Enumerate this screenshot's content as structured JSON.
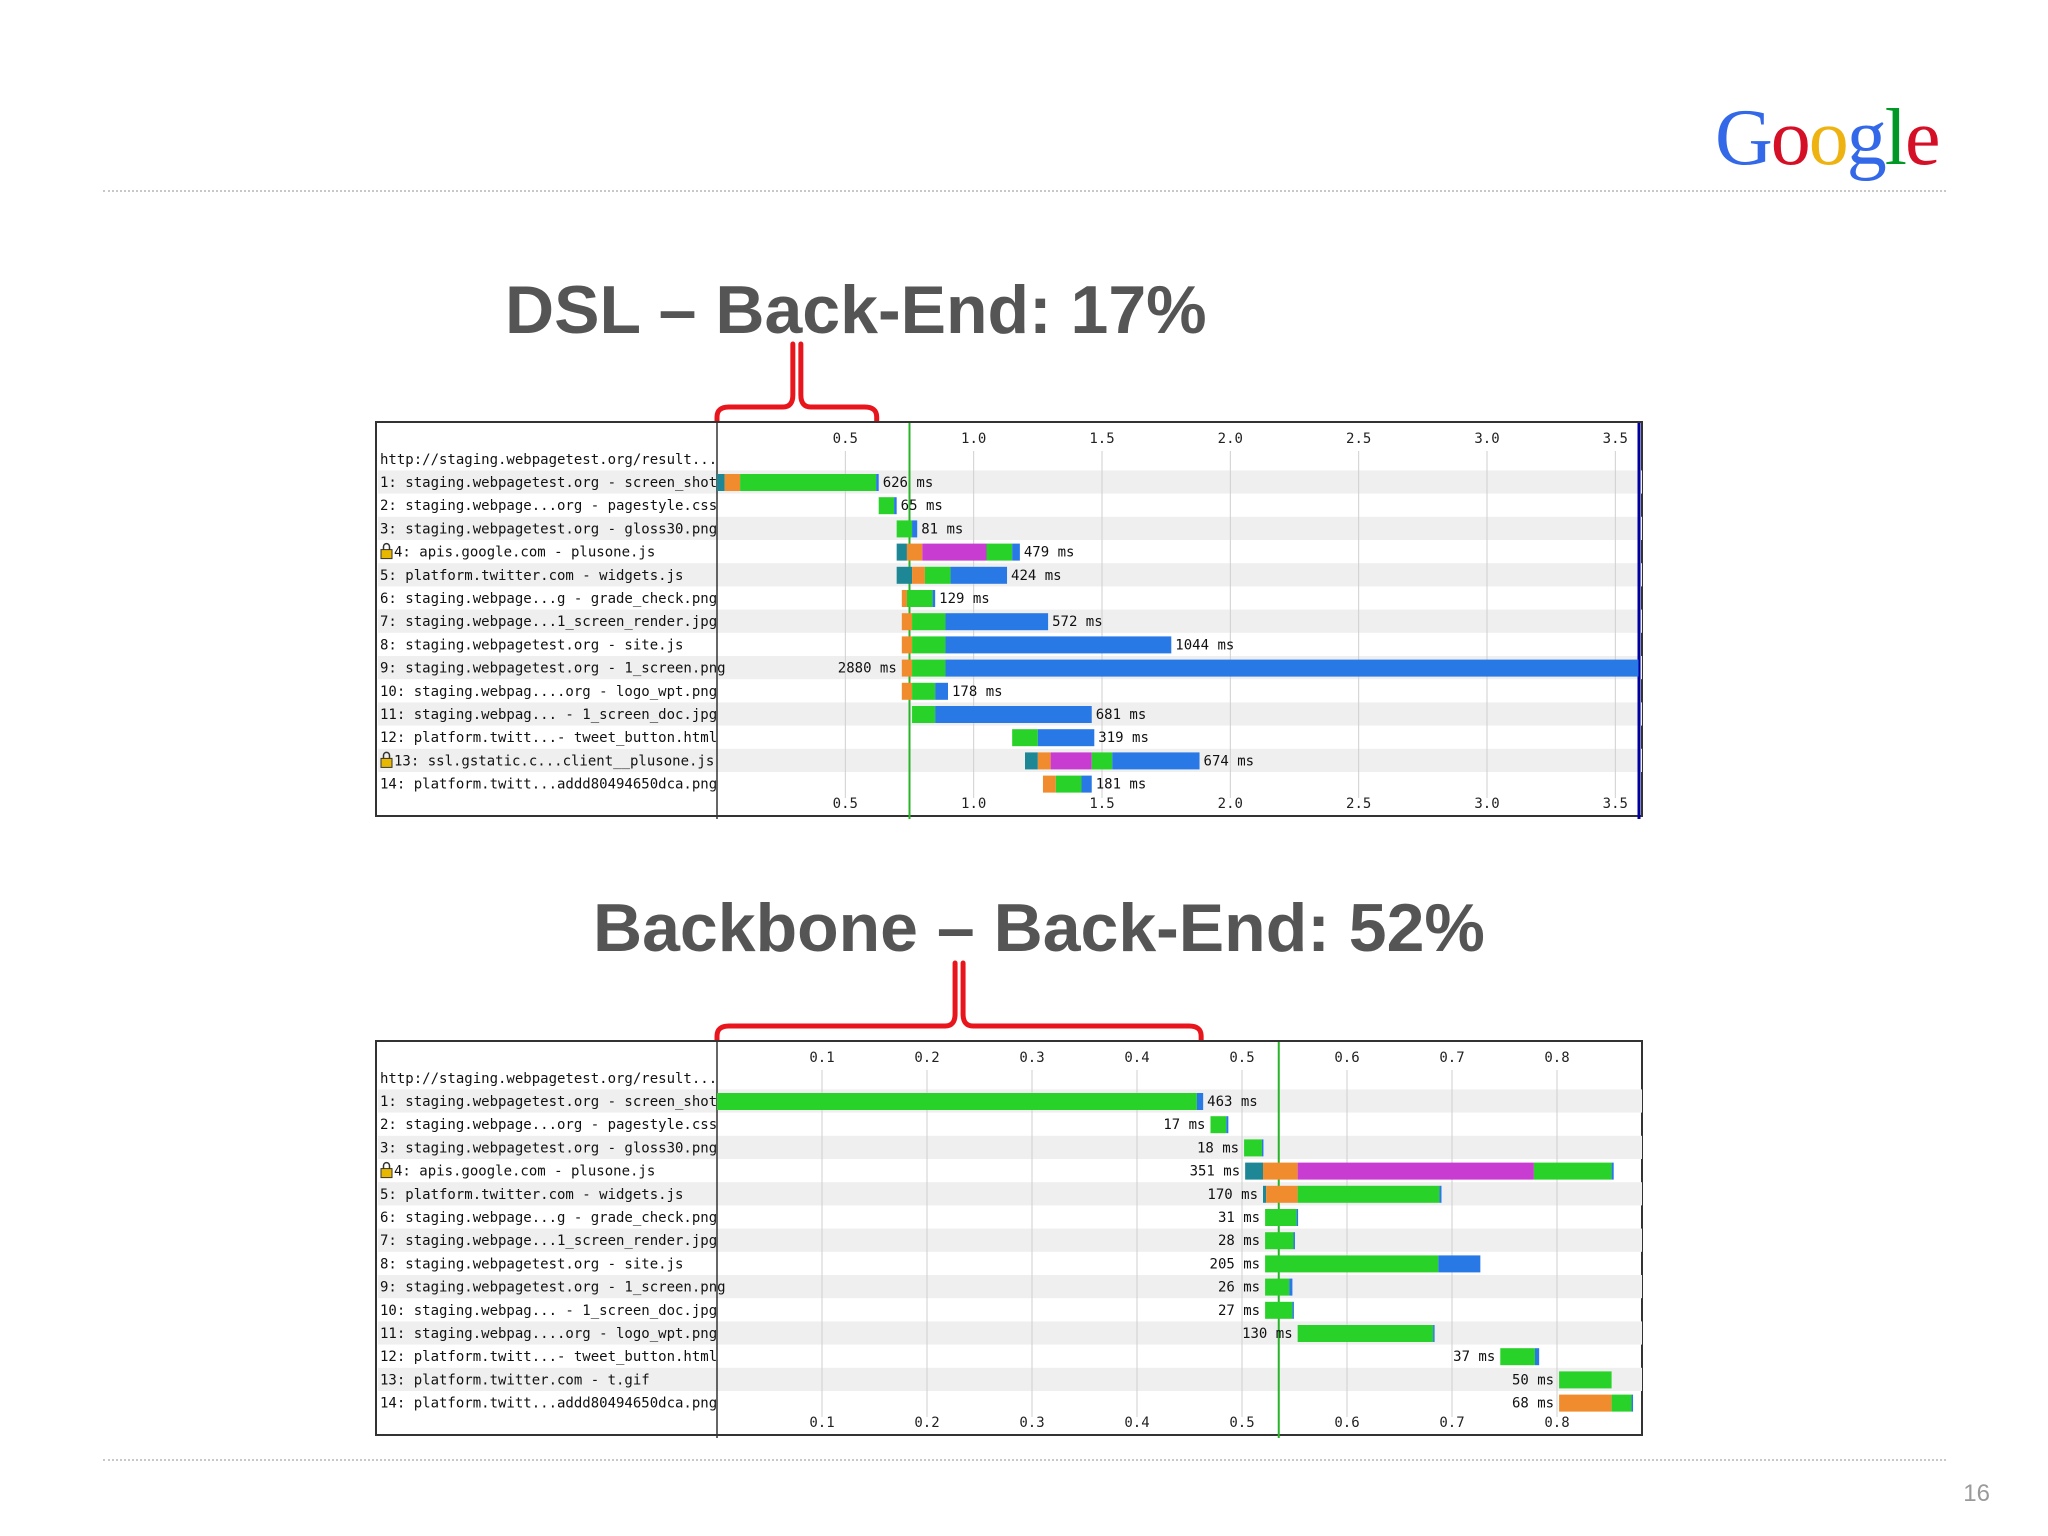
{
  "logo": {
    "letters": [
      "G",
      "o",
      "o",
      "g",
      "l",
      "e"
    ],
    "colors": [
      "#3369e8",
      "#d50f25",
      "#eeb211",
      "#3369e8",
      "#009925",
      "#d50f25"
    ]
  },
  "page_number": "16",
  "colors": {
    "dns": "#1e8796",
    "connect": "#f08c2d",
    "ssl": "#c83cd2",
    "ttfb": "#28d228",
    "download": "#2878e6",
    "start_render": "#28b428",
    "doc_complete": "#0000a0",
    "brace": "#e8161c"
  },
  "chart_data": [
    {
      "type": "waterfall",
      "title": "DSL – Back-End: 17%",
      "xlim": [
        0,
        3.6
      ],
      "ticks": [
        "0.5",
        "1.0",
        "1.5",
        "2.0",
        "2.5",
        "3.0",
        "3.5"
      ],
      "tick_values": [
        0.5,
        1.0,
        1.5,
        2.0,
        2.5,
        3.0,
        3.5
      ],
      "start_render": 0.75,
      "doc_complete": 3.6,
      "brace_range": [
        0,
        0.63
      ],
      "header_row": "http://staging.webpagetest.org/result...",
      "rows": [
        {
          "label": "1: staging.webpagetest.org - screen_shot/",
          "secure": false,
          "duration": "626 ms",
          "side": "right",
          "segments": [
            {
              "phase": "dns",
              "start": 0.0,
              "end": 0.03
            },
            {
              "phase": "connect",
              "start": 0.03,
              "end": 0.09
            },
            {
              "phase": "ttfb",
              "start": 0.09,
              "end": 0.62
            },
            {
              "phase": "download",
              "start": 0.62,
              "end": 0.63
            }
          ]
        },
        {
          "label": "2: staging.webpage...org - pagestyle.css",
          "secure": false,
          "duration": "65 ms",
          "side": "right",
          "segments": [
            {
              "phase": "ttfb",
              "start": 0.63,
              "end": 0.69
            },
            {
              "phase": "download",
              "start": 0.69,
              "end": 0.7
            }
          ]
        },
        {
          "label": "3: staging.webpagetest.org - gloss30.png",
          "secure": false,
          "duration": "81 ms",
          "side": "right",
          "segments": [
            {
              "phase": "ttfb",
              "start": 0.7,
              "end": 0.76
            },
            {
              "phase": "download",
              "start": 0.76,
              "end": 0.78
            }
          ]
        },
        {
          "label": "4: apis.google.com - plusone.js",
          "secure": true,
          "duration": "479 ms",
          "side": "right",
          "segments": [
            {
              "phase": "dns",
              "start": 0.7,
              "end": 0.74
            },
            {
              "phase": "connect",
              "start": 0.74,
              "end": 0.8
            },
            {
              "phase": "ssl",
              "start": 0.8,
              "end": 1.05
            },
            {
              "phase": "ttfb",
              "start": 1.05,
              "end": 1.15
            },
            {
              "phase": "download",
              "start": 1.15,
              "end": 1.18
            }
          ]
        },
        {
          "label": "5: platform.twitter.com - widgets.js",
          "secure": false,
          "duration": "424 ms",
          "side": "right",
          "segments": [
            {
              "phase": "dns",
              "start": 0.7,
              "end": 0.76
            },
            {
              "phase": "connect",
              "start": 0.76,
              "end": 0.81
            },
            {
              "phase": "ttfb",
              "start": 0.81,
              "end": 0.91
            },
            {
              "phase": "download",
              "start": 0.91,
              "end": 1.13
            }
          ]
        },
        {
          "label": "6: staging.webpage...g - grade_check.png",
          "secure": false,
          "duration": "129 ms",
          "side": "right",
          "segments": [
            {
              "phase": "connect",
              "start": 0.72,
              "end": 0.74
            },
            {
              "phase": "ttfb",
              "start": 0.74,
              "end": 0.84
            },
            {
              "phase": "download",
              "start": 0.84,
              "end": 0.85
            }
          ]
        },
        {
          "label": "7: staging.webpage...1_screen_render.jpg",
          "secure": false,
          "duration": "572 ms",
          "side": "right",
          "segments": [
            {
              "phase": "connect",
              "start": 0.72,
              "end": 0.76
            },
            {
              "phase": "ttfb",
              "start": 0.76,
              "end": 0.89
            },
            {
              "phase": "download",
              "start": 0.89,
              "end": 1.29
            }
          ]
        },
        {
          "label": "8: staging.webpagetest.org - site.js",
          "secure": false,
          "duration": "1044 ms",
          "side": "right",
          "segments": [
            {
              "phase": "connect",
              "start": 0.72,
              "end": 0.76
            },
            {
              "phase": "ttfb",
              "start": 0.76,
              "end": 0.89
            },
            {
              "phase": "download",
              "start": 0.89,
              "end": 1.77
            }
          ]
        },
        {
          "label": "9: staging.webpagetest.org - 1_screen.png",
          "secure": false,
          "duration": "2880 ms",
          "side": "left",
          "segments": [
            {
              "phase": "connect",
              "start": 0.72,
              "end": 0.76
            },
            {
              "phase": "ttfb",
              "start": 0.76,
              "end": 0.89
            },
            {
              "phase": "download",
              "start": 0.89,
              "end": 3.59
            }
          ]
        },
        {
          "label": "10: staging.webpag....org - logo_wpt.png",
          "secure": false,
          "duration": "178 ms",
          "side": "right",
          "segments": [
            {
              "phase": "connect",
              "start": 0.72,
              "end": 0.76
            },
            {
              "phase": "ttfb",
              "start": 0.76,
              "end": 0.85
            },
            {
              "phase": "download",
              "start": 0.85,
              "end": 0.9
            }
          ]
        },
        {
          "label": "11: staging.webpag... - 1_screen_doc.jpg",
          "secure": false,
          "duration": "681 ms",
          "side": "right",
          "segments": [
            {
              "phase": "ttfb",
              "start": 0.76,
              "end": 0.85
            },
            {
              "phase": "download",
              "start": 0.85,
              "end": 1.46
            }
          ]
        },
        {
          "label": "12: platform.twitt...- tweet_button.html",
          "secure": false,
          "duration": "319 ms",
          "side": "right",
          "segments": [
            {
              "phase": "ttfb",
              "start": 1.15,
              "end": 1.25
            },
            {
              "phase": "download",
              "start": 1.25,
              "end": 1.47
            }
          ]
        },
        {
          "label": "13: ssl.gstatic.c...client__plusone.js",
          "secure": true,
          "duration": "674 ms",
          "side": "right",
          "segments": [
            {
              "phase": "dns",
              "start": 1.2,
              "end": 1.25
            },
            {
              "phase": "connect",
              "start": 1.25,
              "end": 1.3
            },
            {
              "phase": "ssl",
              "start": 1.3,
              "end": 1.46
            },
            {
              "phase": "ttfb",
              "start": 1.46,
              "end": 1.54
            },
            {
              "phase": "download",
              "start": 1.54,
              "end": 1.88
            }
          ]
        },
        {
          "label": "14: platform.twitt...addd80494650dca.png",
          "secure": false,
          "duration": "181 ms",
          "side": "right",
          "segments": [
            {
              "phase": "connect",
              "start": 1.27,
              "end": 1.32
            },
            {
              "phase": "ttfb",
              "start": 1.32,
              "end": 1.42
            },
            {
              "phase": "download",
              "start": 1.42,
              "end": 1.46
            }
          ]
        }
      ]
    },
    {
      "type": "waterfall",
      "title": "Backbone – Back-End: 52%",
      "xlim": [
        0,
        0.88
      ],
      "ticks": [
        "0.1",
        "0.2",
        "0.3",
        "0.4",
        "0.5",
        "0.6",
        "0.7",
        "0.8"
      ],
      "tick_values": [
        0.1,
        0.2,
        0.3,
        0.4,
        0.5,
        0.6,
        0.7,
        0.8
      ],
      "start_render": 0.535,
      "doc_complete": null,
      "brace_range": [
        0,
        0.463
      ],
      "header_row": "http://staging.webpagetest.org/result...",
      "rows": [
        {
          "label": "1: staging.webpagetest.org - screen_shot/",
          "secure": false,
          "duration": "463 ms",
          "side": "right",
          "segments": [
            {
              "phase": "ttfb",
              "start": 0.0,
              "end": 0.457
            },
            {
              "phase": "download",
              "start": 0.457,
              "end": 0.463
            }
          ]
        },
        {
          "label": "2: staging.webpage...org - pagestyle.css",
          "secure": false,
          "duration": "17 ms",
          "side": "left",
          "segments": [
            {
              "phase": "ttfb",
              "start": 0.47,
              "end": 0.485
            },
            {
              "phase": "download",
              "start": 0.485,
              "end": 0.487
            }
          ]
        },
        {
          "label": "3: staging.webpagetest.org - gloss30.png",
          "secure": false,
          "duration": "18 ms",
          "side": "left",
          "segments": [
            {
              "phase": "ttfb",
              "start": 0.502,
              "end": 0.519
            },
            {
              "phase": "download",
              "start": 0.519,
              "end": 0.52
            }
          ]
        },
        {
          "label": "4: apis.google.com - plusone.js",
          "secure": true,
          "duration": "351 ms",
          "side": "left",
          "segments": [
            {
              "phase": "dns",
              "start": 0.503,
              "end": 0.52
            },
            {
              "phase": "connect",
              "start": 0.52,
              "end": 0.553
            },
            {
              "phase": "ssl",
              "start": 0.553,
              "end": 0.778
            },
            {
              "phase": "ttfb",
              "start": 0.778,
              "end": 0.852
            },
            {
              "phase": "download",
              "start": 0.852,
              "end": 0.854
            }
          ]
        },
        {
          "label": "5: platform.twitter.com - widgets.js",
          "secure": false,
          "duration": "170 ms",
          "side": "left",
          "segments": [
            {
              "phase": "dns",
              "start": 0.52,
              "end": 0.523
            },
            {
              "phase": "connect",
              "start": 0.523,
              "end": 0.553
            },
            {
              "phase": "ttfb",
              "start": 0.553,
              "end": 0.688
            },
            {
              "phase": "download",
              "start": 0.688,
              "end": 0.69
            }
          ]
        },
        {
          "label": "6: staging.webpage...g - grade_check.png",
          "secure": false,
          "duration": "31 ms",
          "side": "left",
          "segments": [
            {
              "phase": "ttfb",
              "start": 0.522,
              "end": 0.552
            },
            {
              "phase": "download",
              "start": 0.552,
              "end": 0.553
            }
          ]
        },
        {
          "label": "7: staging.webpage...1_screen_render.jpg",
          "secure": false,
          "duration": "28 ms",
          "side": "left",
          "segments": [
            {
              "phase": "ttfb",
              "start": 0.522,
              "end": 0.549
            },
            {
              "phase": "download",
              "start": 0.549,
              "end": 0.55
            }
          ]
        },
        {
          "label": "8: staging.webpagetest.org - site.js",
          "secure": false,
          "duration": "205 ms",
          "side": "left",
          "segments": [
            {
              "phase": "ttfb",
              "start": 0.522,
              "end": 0.687
            },
            {
              "phase": "download",
              "start": 0.687,
              "end": 0.727
            }
          ]
        },
        {
          "label": "9: staging.webpagetest.org - 1_screen.png",
          "secure": false,
          "duration": "26 ms",
          "side": "left",
          "segments": [
            {
              "phase": "ttfb",
              "start": 0.522,
              "end": 0.545
            },
            {
              "phase": "download",
              "start": 0.545,
              "end": 0.548
            }
          ]
        },
        {
          "label": "10: staging.webpag... - 1_screen_doc.jpg",
          "secure": false,
          "duration": "27 ms",
          "side": "left",
          "segments": [
            {
              "phase": "ttfb",
              "start": 0.522,
              "end": 0.548
            },
            {
              "phase": "download",
              "start": 0.548,
              "end": 0.549
            }
          ]
        },
        {
          "label": "11: staging.webpag....org - logo_wpt.png",
          "secure": false,
          "duration": "130 ms",
          "side": "left",
          "segments": [
            {
              "phase": "ttfb",
              "start": 0.553,
              "end": 0.682
            },
            {
              "phase": "download",
              "start": 0.682,
              "end": 0.683
            }
          ]
        },
        {
          "label": "12: platform.twitt...- tweet_button.html",
          "secure": false,
          "duration": "37 ms",
          "side": "left",
          "segments": [
            {
              "phase": "ttfb",
              "start": 0.746,
              "end": 0.779
            },
            {
              "phase": "download",
              "start": 0.779,
              "end": 0.783
            }
          ]
        },
        {
          "label": "13: platform.twitter.com - t.gif",
          "secure": false,
          "duration": "50 ms",
          "side": "left",
          "segments": [
            {
              "phase": "ttfb",
              "start": 0.802,
              "end": 0.852
            }
          ]
        },
        {
          "label": "14: platform.twitt...addd80494650dca.png",
          "secure": false,
          "duration": "68 ms",
          "side": "left",
          "segments": [
            {
              "phase": "connect",
              "start": 0.802,
              "end": 0.852
            },
            {
              "phase": "ttfb",
              "start": 0.852,
              "end": 0.871
            },
            {
              "phase": "download",
              "start": 0.871,
              "end": 0.872
            }
          ]
        }
      ]
    }
  ]
}
